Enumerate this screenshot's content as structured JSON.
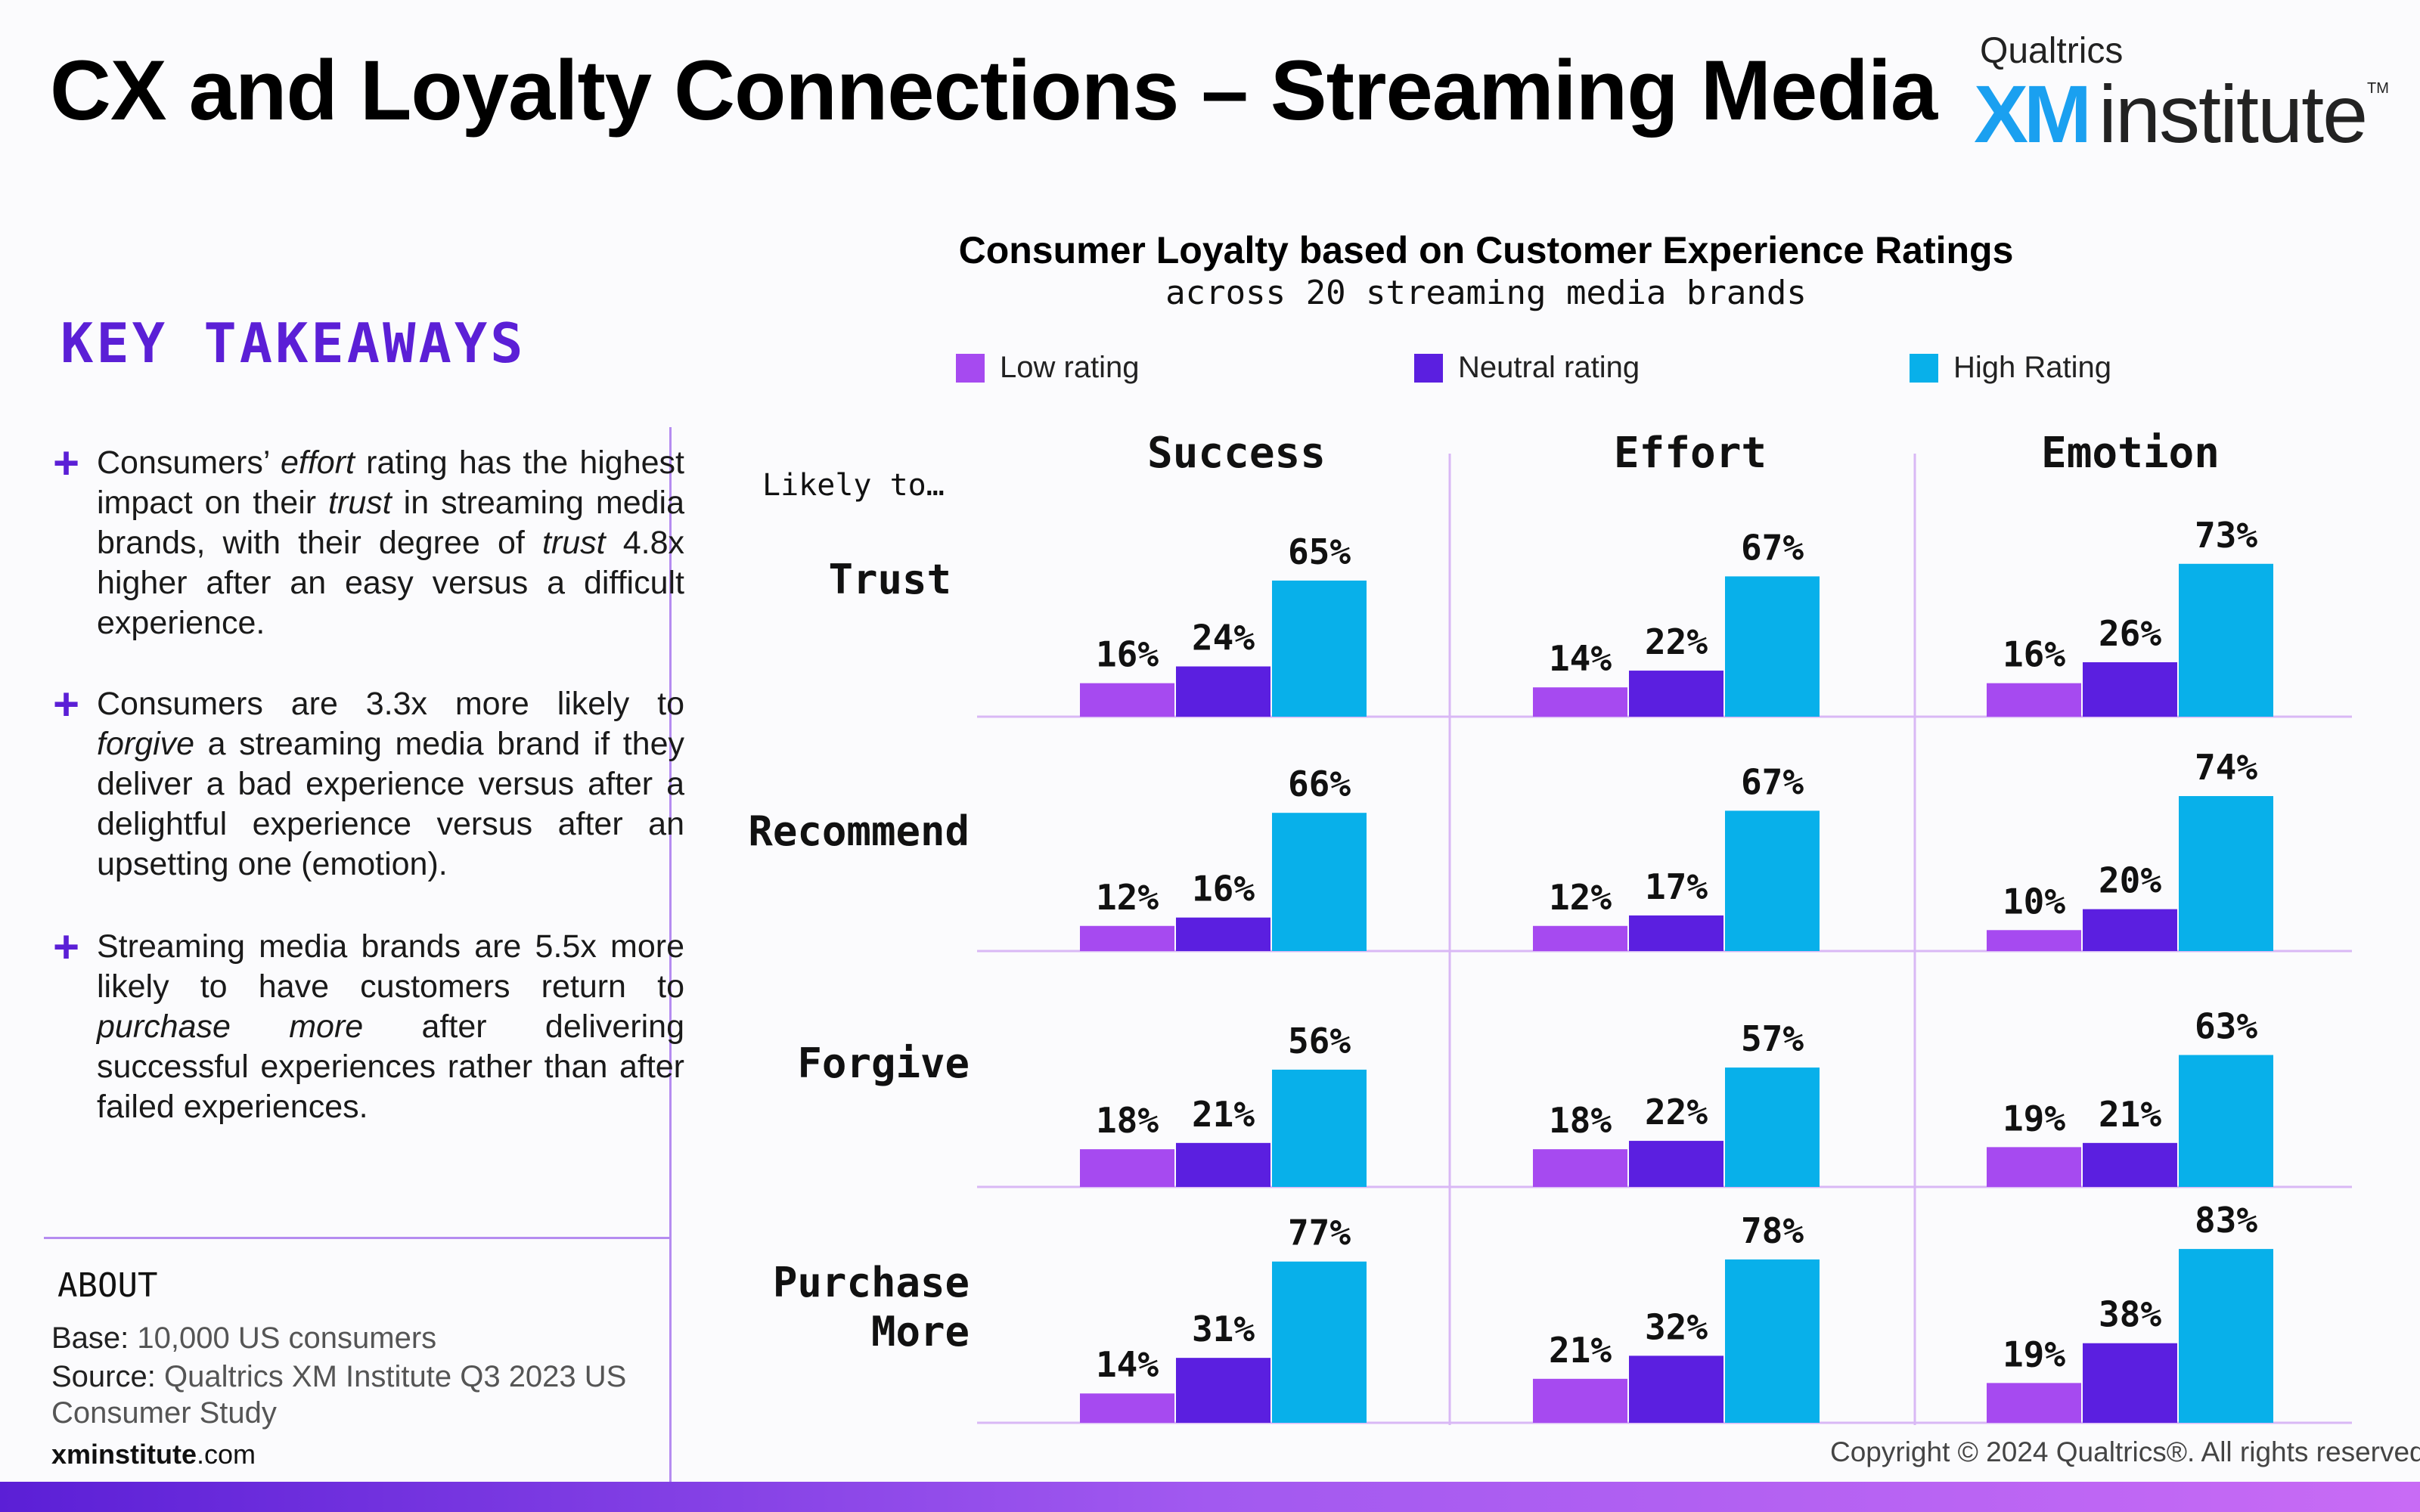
{
  "header": {
    "title": "CX and Loyalty Connections – Streaming Media",
    "logo_brand": "Qualtrics",
    "logo_xm": "XM",
    "logo_institute": "institute",
    "logo_tm": "TM"
  },
  "takeaways": {
    "heading": "KEY TAKEAWAYS",
    "items": [
      "Consumers’ effort rating has the highest impact on their trust in streaming media brands, with their degree of trust 4.8x higher after an easy versus a difficult experience.",
      "Consumers are 3.3x more likely to forgive a streaming media brand if they deliver a bad experience versus after a delightful experience versus after an upsetting one (emotion).",
      "Streaming media brands are 5.5x more likely to have customers return to purchase more after delivering successful experiences rather than after failed experiences."
    ]
  },
  "about": {
    "heading": "ABOUT",
    "base_label": "Base:",
    "base_value": "10,000 US consumers",
    "source_label": "Source:",
    "source_value": "Qualtrics XM Institute Q3 2023 US Consumer Study",
    "site_bold": "xminstitute",
    "site_rest": ".com"
  },
  "footer": {
    "copyright": "Copyright © 2024 Qualtrics®. All rights reserved."
  },
  "colors": {
    "low": "#a64af0",
    "neutral": "#5b1fe0",
    "high": "#08b0ea",
    "accent": "#5b1fd6"
  },
  "chart_data": {
    "type": "bar",
    "title": "Consumer Loyalty based on Customer Experience Ratings",
    "subtitle": "across 20 streaming media brands",
    "row_header": "Likely to…",
    "columns": [
      "Success",
      "Effort",
      "Emotion"
    ],
    "rows": [
      "Trust",
      "Recommend",
      "Forgive",
      "Purchase More"
    ],
    "series": [
      {
        "name": "Low rating",
        "color": "#a64af0"
      },
      {
        "name": "Neutral rating",
        "color": "#5b1fe0"
      },
      {
        "name": "High Rating",
        "color": "#08b0ea"
      }
    ],
    "unit": "%",
    "values": {
      "Trust": {
        "Success": [
          16,
          24,
          65
        ],
        "Effort": [
          14,
          22,
          67
        ],
        "Emotion": [
          16,
          26,
          73
        ]
      },
      "Recommend": {
        "Success": [
          12,
          16,
          66
        ],
        "Effort": [
          12,
          17,
          67
        ],
        "Emotion": [
          10,
          20,
          74
        ]
      },
      "Forgive": {
        "Success": [
          18,
          21,
          56
        ],
        "Effort": [
          18,
          22,
          57
        ],
        "Emotion": [
          19,
          21,
          63
        ]
      },
      "Purchase More": {
        "Success": [
          14,
          31,
          77
        ],
        "Effort": [
          21,
          32,
          78
        ],
        "Emotion": [
          19,
          38,
          83
        ]
      }
    },
    "ylim": [
      0,
      100
    ],
    "legend_position": "top",
    "grid": false
  }
}
